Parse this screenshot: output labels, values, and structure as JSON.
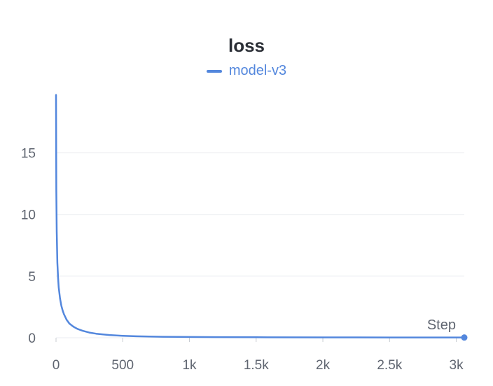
{
  "chart_data": {
    "type": "line",
    "title": "loss",
    "xlabel": "Step",
    "ylabel": "",
    "xlim": [
      0,
      3060
    ],
    "ylim": [
      0,
      19.8
    ],
    "x_ticks": [
      {
        "value": 0,
        "label": "0"
      },
      {
        "value": 500,
        "label": "500"
      },
      {
        "value": 1000,
        "label": "1k"
      },
      {
        "value": 1500,
        "label": "1.5k"
      },
      {
        "value": 2000,
        "label": "2k"
      },
      {
        "value": 2500,
        "label": "2.5k"
      },
      {
        "value": 3000,
        "label": "3k"
      }
    ],
    "y_ticks": [
      {
        "value": 0,
        "label": "0"
      },
      {
        "value": 5,
        "label": "5"
      },
      {
        "value": 10,
        "label": "10"
      },
      {
        "value": 15,
        "label": "15"
      }
    ],
    "grid": true,
    "legend_position": "top-center",
    "series": [
      {
        "name": "model-v3",
        "color": "#5387dd",
        "x": [
          0,
          2,
          5,
          10,
          15,
          20,
          30,
          40,
          50,
          60,
          80,
          100,
          130,
          160,
          200,
          250,
          300,
          400,
          500,
          600,
          700,
          800,
          1000,
          1200,
          1500,
          2000,
          2500,
          3000,
          3060
        ],
        "y": [
          19.7,
          12.0,
          8.6,
          6.1,
          4.9,
          4.1,
          3.2,
          2.6,
          2.2,
          1.9,
          1.45,
          1.15,
          0.9,
          0.72,
          0.56,
          0.42,
          0.33,
          0.22,
          0.16,
          0.12,
          0.1,
          0.08,
          0.06,
          0.05,
          0.04,
          0.03,
          0.02,
          0.02,
          0.02
        ]
      }
    ]
  }
}
